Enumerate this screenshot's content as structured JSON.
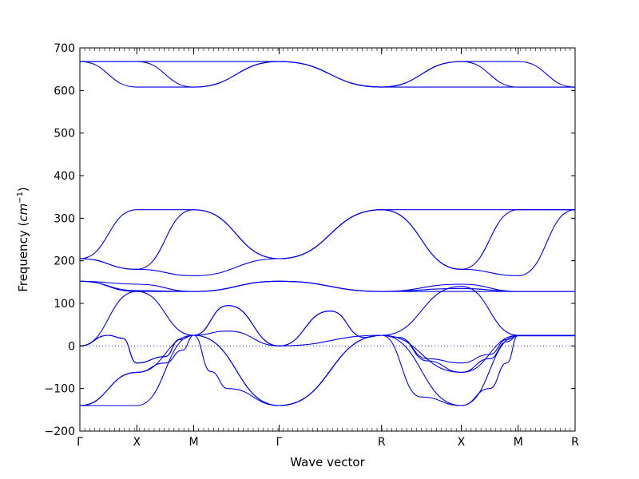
{
  "chart_data": {
    "type": "line",
    "title": "",
    "xlabel": "Wave vector",
    "ylabel": "Frequency (cm⁻¹)",
    "ylabel_main": "Frequency (",
    "ylabel_unit": "cm",
    "ylabel_exp": "−1",
    "ylabel_close": ")",
    "ylim": [
      -200,
      700
    ],
    "yticks": [
      -200,
      -100,
      0,
      100,
      200,
      300,
      400,
      500,
      600,
      700
    ],
    "yticks_labels": [
      "−200",
      "−100",
      "0",
      "100",
      "200",
      "300",
      "400",
      "500",
      "600",
      "700"
    ],
    "xlim": [
      0,
      8.7
    ],
    "x_points": [
      0,
      1,
      2,
      3.5,
      5.3,
      6.7,
      7.7,
      8.7
    ],
    "x_labels": [
      "Γ",
      "X",
      "M",
      "Γ",
      "R",
      "X",
      "M",
      "R"
    ],
    "zero_line": {
      "y": 0,
      "style": "dotted"
    },
    "grid": false,
    "series_color": "#0000ee",
    "bands": [
      {
        "x": [
          0,
          1,
          2,
          3.5,
          5.3,
          6.7,
          7.7,
          8.7
        ],
        "y": [
          668,
          668,
          668,
          668,
          608,
          668,
          668,
          608
        ]
      },
      {
        "x": [
          0,
          1,
          2,
          3.5,
          5.3,
          6.7,
          7.7,
          8.7
        ],
        "y": [
          668,
          608,
          608,
          668,
          608,
          608,
          608,
          608
        ]
      },
      {
        "x": [
          0,
          1,
          2,
          3.5,
          5.3,
          6.7,
          7.7,
          8.7
        ],
        "y": [
          668,
          668,
          608,
          668,
          608,
          668,
          608,
          608
        ]
      },
      {
        "x": [
          0,
          1,
          2,
          3.5,
          5.3,
          6.7,
          7.7,
          8.7
        ],
        "y": [
          205,
          320,
          320,
          205,
          320,
          320,
          320,
          320
        ]
      },
      {
        "x": [
          0,
          1,
          2,
          3.5,
          5.3,
          6.7,
          7.7,
          8.7
        ],
        "y": [
          205,
          180,
          320,
          205,
          320,
          180,
          320,
          320
        ]
      },
      {
        "x": [
          0,
          1,
          2,
          3.5,
          5.3,
          6.7,
          7.7,
          8.7
        ],
        "y": [
          205,
          180,
          165,
          205,
          320,
          180,
          165,
          320
        ]
      },
      {
        "x": [
          0,
          1,
          2,
          3.5,
          5.3,
          6.7,
          7.7,
          8.7
        ],
        "y": [
          152,
          145,
          128,
          152,
          128,
          145,
          128,
          128
        ]
      },
      {
        "x": [
          0,
          1,
          2,
          3.5,
          5.3,
          6.7,
          7.7,
          8.7
        ],
        "y": [
          152,
          130,
          128,
          152,
          128,
          135,
          128,
          128
        ]
      },
      {
        "x": [
          0,
          1,
          2,
          3.5,
          5.3,
          6.7,
          7.7,
          8.7
        ],
        "y": [
          152,
          128,
          128,
          152,
          128,
          128,
          128,
          128
        ]
      },
      {
        "x": [
          0,
          0.5,
          0.75,
          1,
          1.5,
          1.75,
          2,
          2.6,
          3.5,
          4.4,
          5.0,
          5.3,
          5.6,
          6.1,
          6.7,
          7.2,
          7.5,
          7.7,
          8.7
        ],
        "y": [
          0,
          25,
          18,
          -40,
          -25,
          15,
          25,
          95,
          0,
          82,
          20,
          25,
          20,
          -30,
          -40,
          -20,
          15,
          24,
          24
        ]
      },
      {
        "x": [
          0,
          0.5,
          0.75,
          1,
          1.5,
          1.75,
          2,
          2.6,
          3.5,
          4.4,
          5.0,
          5.3,
          5.6,
          6.1,
          6.7,
          7.2,
          7.5,
          7.7,
          8.7
        ],
        "y": [
          0,
          25,
          18,
          -40,
          -25,
          15,
          25,
          95,
          0,
          82,
          20,
          25,
          20,
          -35,
          -62,
          -30,
          10,
          24,
          24
        ]
      },
      {
        "x": [
          0,
          1,
          2,
          3.5,
          5.3,
          6.7,
          7.7,
          8.7
        ],
        "y": [
          0,
          128,
          25,
          -140,
          25,
          -140,
          25,
          25
        ]
      },
      {
        "x": [
          0,
          1,
          1.5,
          1.8,
          2,
          2.3,
          2.6,
          3.5,
          5.3,
          6.0,
          6.7,
          7.2,
          7.5,
          7.7,
          8.7
        ],
        "y": [
          -140,
          -62,
          -40,
          -10,
          25,
          -60,
          -100,
          -140,
          25,
          -120,
          -140,
          -100,
          -40,
          25,
          25
        ]
      },
      {
        "x": [
          0,
          1,
          2,
          3.5,
          5.3,
          6.7,
          7.7,
          8.7
        ],
        "y": [
          -140,
          -140,
          25,
          -140,
          25,
          140,
          25,
          25
        ]
      },
      {
        "x": [
          0,
          1,
          2,
          2.6,
          3.5,
          5.3,
          6.7,
          7.7,
          8.7
        ],
        "y": [
          -140,
          -62,
          25,
          35,
          0,
          25,
          -62,
          25,
          25
        ]
      }
    ]
  }
}
